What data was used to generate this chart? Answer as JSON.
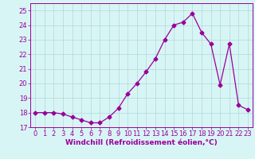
{
  "x": [
    0,
    1,
    2,
    3,
    4,
    5,
    6,
    7,
    8,
    9,
    10,
    11,
    12,
    13,
    14,
    15,
    16,
    17,
    18,
    19,
    20,
    21,
    22,
    23
  ],
  "y": [
    18.0,
    18.0,
    18.0,
    17.9,
    17.7,
    17.5,
    17.3,
    17.3,
    17.7,
    18.3,
    19.3,
    20.0,
    20.8,
    21.7,
    23.0,
    24.0,
    24.2,
    24.8,
    23.5,
    22.7,
    19.9,
    22.7,
    18.5,
    18.2
  ],
  "line_color": "#990099",
  "marker": "D",
  "markersize": 2.5,
  "linewidth": 0.9,
  "background_color": "#d8f5f5",
  "grid_color": "#b0d8d8",
  "axis_color": "#990099",
  "tick_color": "#990099",
  "xlabel": "Windchill (Refroidissement éolien,°C)",
  "xlabel_fontsize": 6.5,
  "xlim": [
    -0.5,
    23.5
  ],
  "ylim": [
    17.0,
    25.5
  ],
  "yticks": [
    17,
    18,
    19,
    20,
    21,
    22,
    23,
    24,
    25
  ],
  "xticks": [
    0,
    1,
    2,
    3,
    4,
    5,
    6,
    7,
    8,
    9,
    10,
    11,
    12,
    13,
    14,
    15,
    16,
    17,
    18,
    19,
    20,
    21,
    22,
    23
  ],
  "tick_fontsize": 6.0,
  "figsize": [
    3.2,
    2.0
  ],
  "dpi": 100
}
